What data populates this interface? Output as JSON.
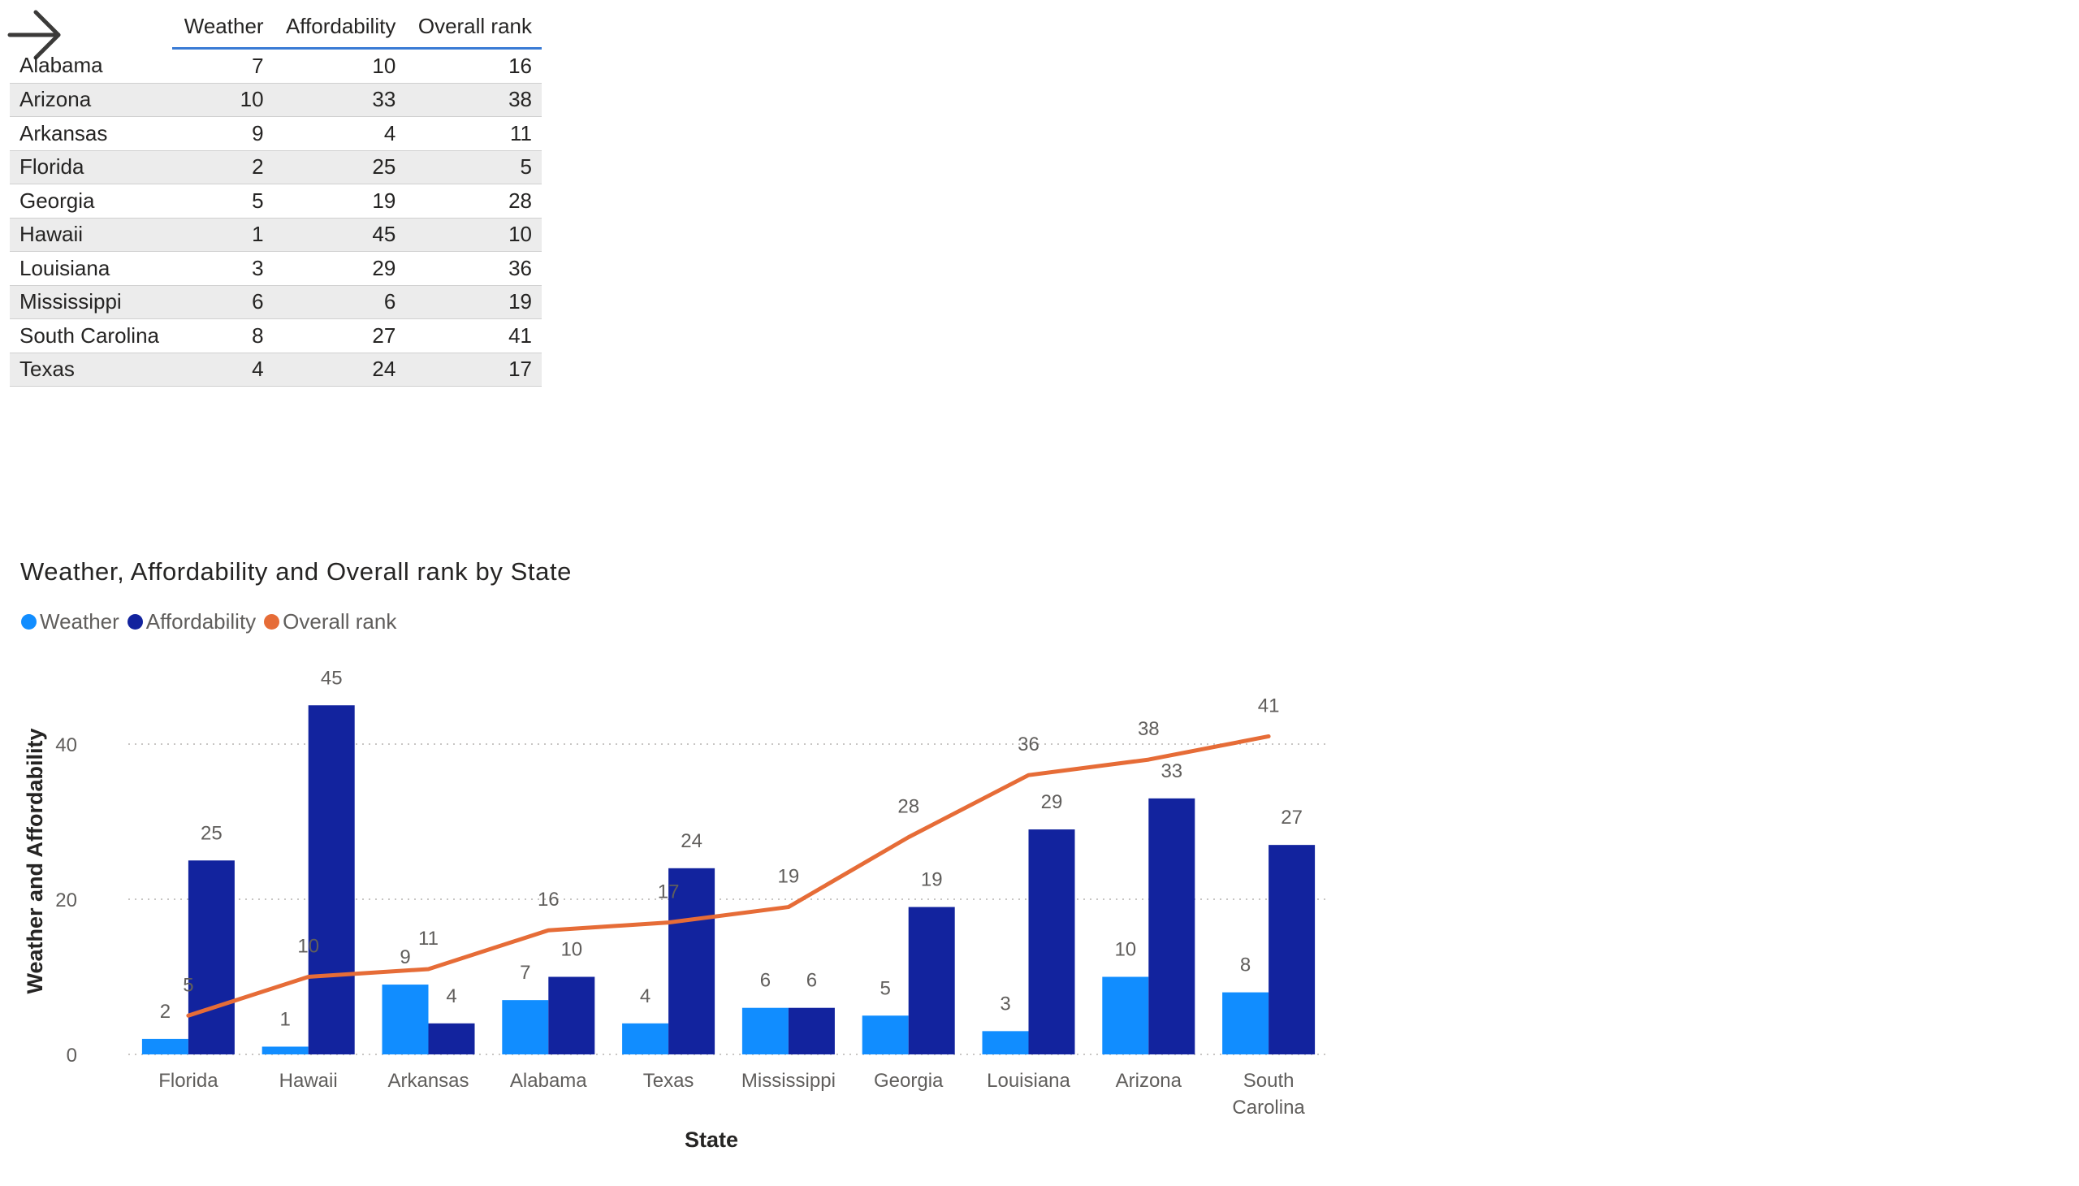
{
  "table": {
    "columns": [
      "Weather",
      "Affordability",
      "Overall rank"
    ],
    "rows": [
      {
        "state": "Alabama",
        "weather": "7",
        "affordability": "10",
        "overall": "16"
      },
      {
        "state": "Arizona",
        "weather": "10",
        "affordability": "33",
        "overall": "38"
      },
      {
        "state": "Arkansas",
        "weather": "9",
        "affordability": "4",
        "overall": "11"
      },
      {
        "state": "Florida",
        "weather": "2",
        "affordability": "25",
        "overall": "5"
      },
      {
        "state": "Georgia",
        "weather": "5",
        "affordability": "19",
        "overall": "28"
      },
      {
        "state": "Hawaii",
        "weather": "1",
        "affordability": "45",
        "overall": "10"
      },
      {
        "state": "Louisiana",
        "weather": "3",
        "affordability": "29",
        "overall": "36"
      },
      {
        "state": "Mississippi",
        "weather": "6",
        "affordability": "6",
        "overall": "19"
      },
      {
        "state": "South Carolina",
        "weather": "8",
        "affordability": "27",
        "overall": "41"
      },
      {
        "state": "Texas",
        "weather": "4",
        "affordability": "24",
        "overall": "17"
      }
    ]
  },
  "chart_data": {
    "type": "bar",
    "title": "Weather, Affordability and Overall rank by State",
    "xlabel": "State",
    "ylabel": "Weather and Affordability",
    "ylim": [
      0,
      45
    ],
    "yticks": [
      0,
      20,
      40
    ],
    "grid": true,
    "legend_position": "top-left",
    "categories": [
      "Florida",
      "Hawaii",
      "Arkansas",
      "Alabama",
      "Texas",
      "Mississippi",
      "Georgia",
      "Louisiana",
      "Arizona",
      "South Carolina"
    ],
    "series": [
      {
        "name": "Weather",
        "type": "bar",
        "color": "#118dff",
        "values": [
          2,
          1,
          9,
          7,
          4,
          6,
          5,
          3,
          10,
          8
        ]
      },
      {
        "name": "Affordability",
        "type": "bar",
        "color": "#12239e",
        "values": [
          25,
          45,
          4,
          10,
          24,
          6,
          19,
          29,
          33,
          27
        ]
      },
      {
        "name": "Overall rank",
        "type": "line",
        "color": "#e66c37",
        "values": [
          5,
          10,
          11,
          16,
          17,
          19,
          28,
          36,
          38,
          41
        ]
      }
    ]
  }
}
